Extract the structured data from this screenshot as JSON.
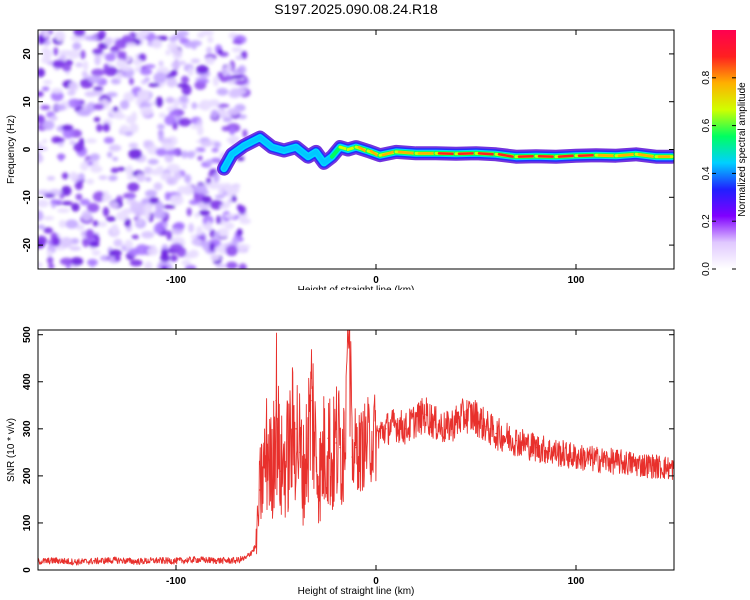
{
  "title": "S197.2025.090.08.24.R18",
  "colors": {
    "snr_line": "#e8302c",
    "axis": "#000000",
    "background_noise": "#8a4fe0",
    "ridge_core": "#ff2020"
  },
  "chart_data": [
    {
      "type": "heatmap",
      "xlabel": "Height of straight line (km)",
      "ylabel": "Frequency (Hz)",
      "xlim": [
        -169,
        149
      ],
      "ylim": [
        -25,
        25
      ],
      "xticks": [
        -100,
        0,
        100
      ],
      "xtick_labels": [
        "-100",
        "0",
        "100"
      ],
      "yticks": [
        -20,
        -10,
        0,
        10,
        20
      ],
      "ytick_labels": [
        "-20",
        "-10",
        "0",
        "10",
        "20"
      ],
      "grid": false,
      "colorbar": {
        "label": "Normalized spectral amplitude",
        "range": [
          0,
          1
        ],
        "ticks": [
          0,
          0.2,
          0.4,
          0.6,
          0.8
        ],
        "tick_labels": [
          "0.0",
          "0.2",
          "0.4",
          "0.6",
          "0.8"
        ],
        "colors": [
          "#ffffff",
          "#e0c8ff",
          "#8000ff",
          "#2020ff",
          "#00d0ff",
          "#00ff60",
          "#d0ff00",
          "#ffb000",
          "#ff2020",
          "#ff0050"
        ]
      },
      "noise_region": {
        "x_range": [
          -169,
          -69
        ],
        "y_range": [
          -25,
          25
        ]
      },
      "ridge": {
        "x": [
          -76,
          -72,
          -66,
          -58,
          -52,
          -46,
          -40,
          -34,
          -30,
          -26,
          -22,
          -18,
          -14,
          -10,
          -4,
          2,
          10,
          20,
          30,
          40,
          50,
          60,
          70,
          80,
          90,
          100,
          110,
          120,
          130,
          140,
          148
        ],
        "y": [
          -4,
          -1,
          0.8,
          2.5,
          0.5,
          -0.2,
          0.5,
          -1.5,
          -0.5,
          -2.8,
          -1.5,
          0.5,
          0,
          0.5,
          -0.3,
          -1.2,
          -0.5,
          -0.8,
          -0.8,
          -0.9,
          -0.8,
          -1.0,
          -1.5,
          -1.4,
          -1.5,
          -1.3,
          -1.2,
          -1.3,
          -1.0,
          -1.5,
          -1.5
        ],
        "amplitude": [
          0.3,
          0.35,
          0.45,
          0.5,
          0.55,
          0.5,
          0.55,
          0.45,
          0.5,
          0.4,
          0.55,
          0.7,
          0.75,
          0.85,
          0.8,
          0.85,
          0.9,
          0.88,
          0.9,
          0.92,
          0.95,
          0.92,
          0.95,
          0.96,
          0.95,
          0.92,
          0.9,
          0.88,
          0.85,
          0.82,
          0.8
        ]
      }
    },
    {
      "type": "line",
      "xlabel": "Height of straight line (km)",
      "ylabel": "SNR (10 * v/v)",
      "xlim": [
        -169,
        149
      ],
      "ylim": [
        0,
        510
      ],
      "xticks": [
        -100,
        0,
        100
      ],
      "xtick_labels": [
        "-100",
        "0",
        "100"
      ],
      "yticks": [
        0,
        100,
        200,
        300,
        400,
        500
      ],
      "ytick_labels": [
        "0",
        "100",
        "200",
        "300",
        "400",
        "500"
      ],
      "grid": false,
      "series": [
        {
          "x": [
            -169,
            -160,
            -150,
            -140,
            -130,
            -120,
            -110,
            -100,
            -90,
            -80,
            -70,
            -65,
            -60,
            -58,
            -54,
            -52,
            -50,
            -48,
            -45,
            -42,
            -40,
            -38,
            -36,
            -34,
            -32,
            -30,
            -28,
            -26,
            -24,
            -22,
            -20,
            -18,
            -16,
            -14,
            -12,
            -10,
            -8,
            -5,
            0,
            5,
            10,
            15,
            20,
            25,
            30,
            35,
            40,
            45,
            50,
            55,
            60,
            70,
            80,
            90,
            100,
            110,
            120,
            130,
            140,
            149
          ],
          "y": [
            18,
            20,
            17,
            19,
            21,
            18,
            20,
            19,
            22,
            20,
            20,
            25,
            50,
            170,
            260,
            200,
            360,
            210,
            230,
            280,
            300,
            250,
            200,
            280,
            360,
            240,
            200,
            250,
            280,
            220,
            270,
            260,
            280,
            500,
            240,
            260,
            250,
            270,
            285,
            300,
            310,
            300,
            320,
            330,
            310,
            300,
            315,
            330,
            325,
            305,
            290,
            275,
            260,
            250,
            240,
            235,
            230,
            225,
            220,
            215
          ]
        }
      ]
    }
  ]
}
